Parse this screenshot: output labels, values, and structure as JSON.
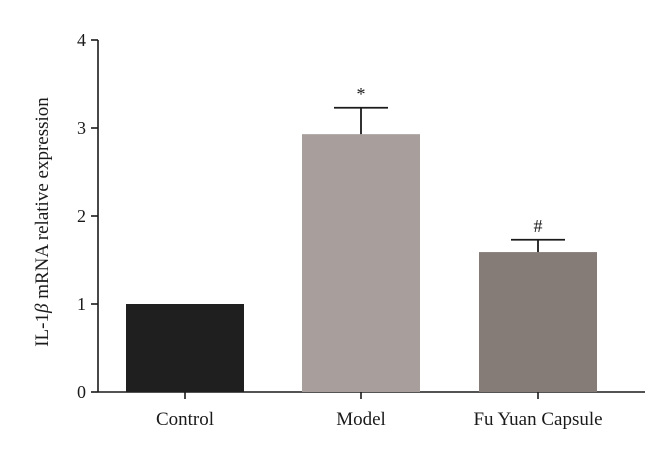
{
  "chart_data": {
    "type": "bar",
    "categories": [
      "Control",
      "Model",
      "Fu Yuan Capsule"
    ],
    "values": [
      1.0,
      2.93,
      1.59
    ],
    "errors": [
      0,
      0.3,
      0.14
    ],
    "annotations": [
      "",
      "*",
      "#"
    ],
    "colors": [
      "#1f1f1f",
      "#a89f9d",
      "#857c78"
    ],
    "ylabel_prefix": "IL-1",
    "ylabel_symbol": "β",
    "ylabel_suffix": " mRNA relative expression",
    "ylim": [
      0,
      4
    ],
    "yticks": [
      0,
      1,
      2,
      3,
      4
    ],
    "grid": false
  }
}
